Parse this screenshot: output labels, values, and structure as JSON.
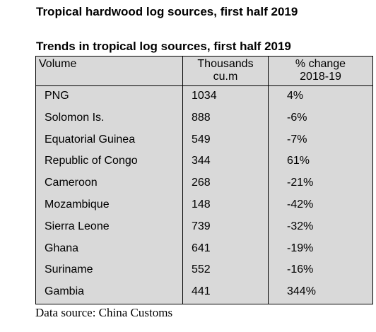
{
  "title": "Tropical hardwood log sources, first half 2019",
  "table_title": "Trends in tropical log sources, first half 2019",
  "columns": {
    "volume": "Volume",
    "thousands_line1": "Thousands",
    "thousands_line2": "cu.m",
    "change_line1": "% change",
    "change_line2": "2018-19"
  },
  "rows": [
    {
      "country": "PNG",
      "volume": "1034",
      "change": "4%"
    },
    {
      "country": "Solomon Is.",
      "volume": "888",
      "change": "-6%"
    },
    {
      "country": "Equatorial Guinea",
      "volume": "549",
      "change": "-7%"
    },
    {
      "country": "Republic of Congo",
      "volume": "344",
      "change": "61%"
    },
    {
      "country": "Cameroon",
      "volume": "268",
      "change": "-21%"
    },
    {
      "country": "Mozambique",
      "volume": "148",
      "change": "-42%"
    },
    {
      "country": "Sierra Leone",
      "volume": "739",
      "change": "-32%"
    },
    {
      "country": "Ghana",
      "volume": "641",
      "change": "-19%"
    },
    {
      "country": "Suriname",
      "volume": "552",
      "change": "-16%"
    },
    {
      "country": "Gambia",
      "volume": "441",
      "change": "344%"
    }
  ],
  "source": "Data source: China Customs"
}
